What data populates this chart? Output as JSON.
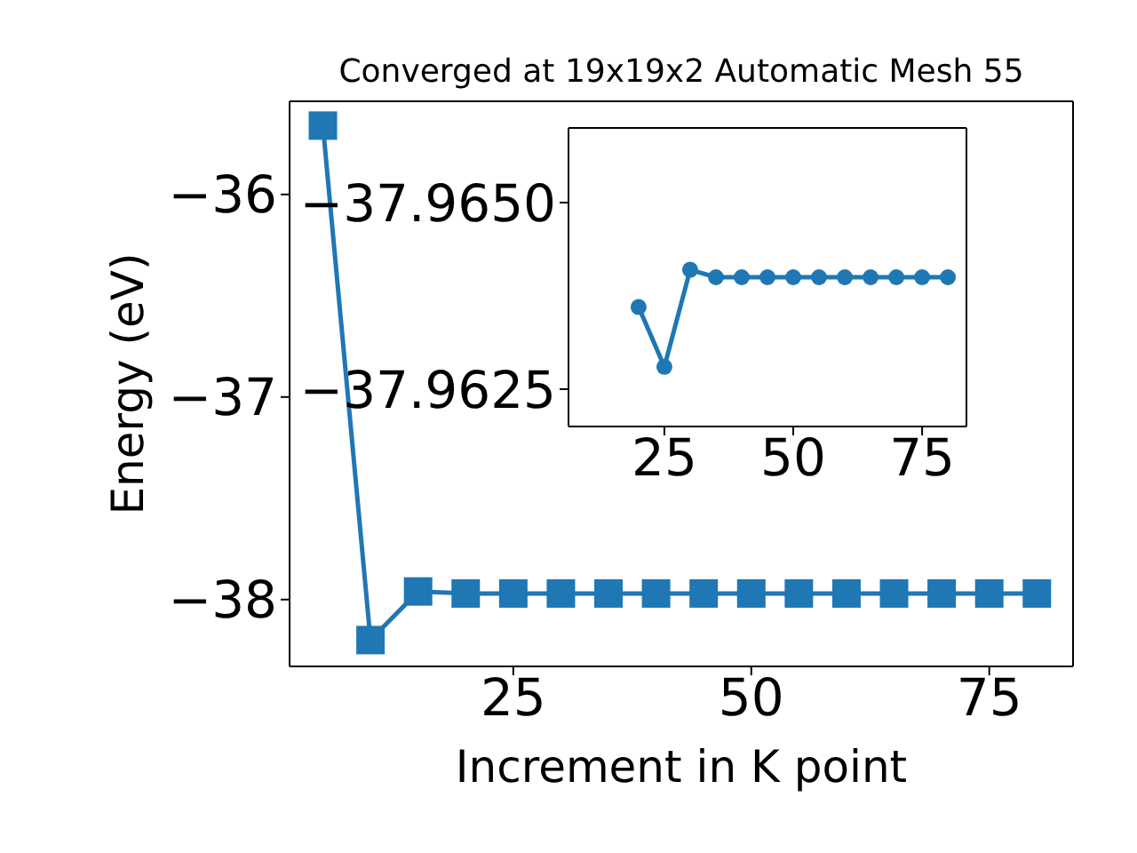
{
  "chart_data": [
    {
      "type": "line",
      "title": "Converged at 19x19x2 Automatic Mesh 55",
      "xlabel": "Increment in K point",
      "ylabel": "Energy (eV)",
      "x": [
        5,
        10,
        15,
        20,
        25,
        30,
        35,
        40,
        45,
        50,
        55,
        60,
        65,
        70,
        75,
        80
      ],
      "series": [
        {
          "color": "#1f77b4",
          "values": [
            -35.66,
            -38.2,
            -37.96,
            -37.97,
            -37.97,
            -37.97,
            -37.97,
            -37.97,
            -37.97,
            -37.97,
            -37.97,
            -37.97,
            -37.97,
            -37.97,
            -37.97,
            -37.97
          ]
        }
      ],
      "xlim": [
        1.5,
        83.8
      ],
      "xticks": [
        25,
        50,
        75
      ],
      "ylim": [
        -38.33,
        -35.54
      ],
      "yticks": [
        {
          "value": -38,
          "label": "−38"
        },
        {
          "value": -37,
          "label": "−37"
        },
        {
          "value": -36,
          "label": "−36"
        }
      ],
      "marker": "square",
      "line_style": "solid"
    },
    {
      "type": "line",
      "x": [
        20,
        25,
        30,
        35,
        40,
        45,
        50,
        55,
        60,
        65,
        70,
        75,
        80
      ],
      "series": [
        {
          "color": "#1f77b4",
          "values": [
            -37.9636,
            -37.9628,
            -37.9641,
            -37.964,
            -37.964,
            -37.964,
            -37.964,
            -37.964,
            -37.964,
            -37.964,
            -37.964,
            -37.964,
            -37.964
          ]
        }
      ],
      "xlim": [
        6.4,
        83.6
      ],
      "xticks": [
        25,
        50,
        75
      ],
      "ylim": [
        -37.962,
        -37.966
      ],
      "yticks": [
        {
          "value": -37.9625,
          "label": "−37.9625"
        },
        {
          "value": -37.965,
          "label": "−37.9650"
        }
      ],
      "marker": "circle",
      "line_style": "solid"
    }
  ]
}
